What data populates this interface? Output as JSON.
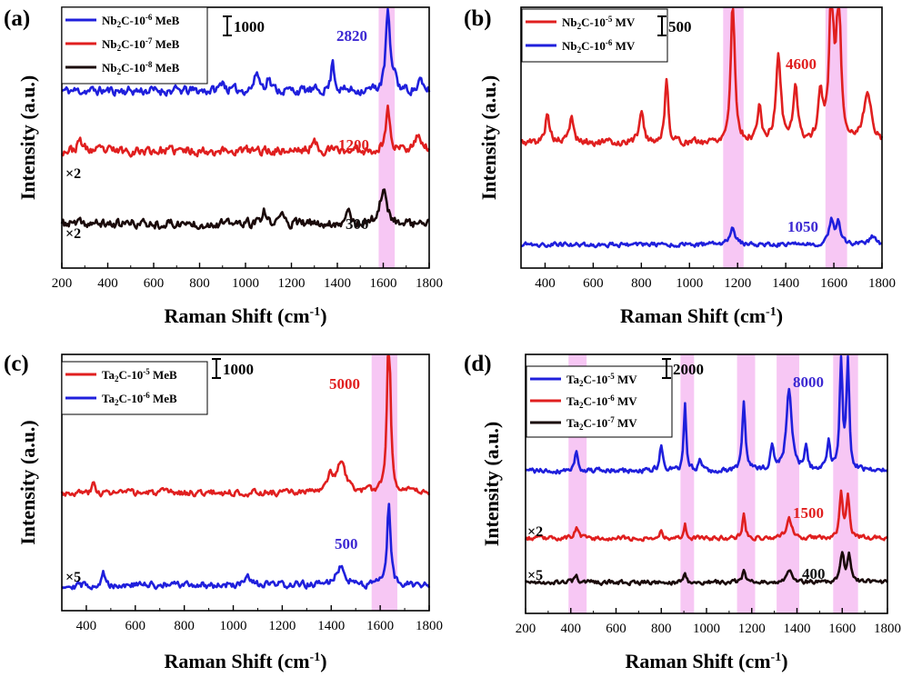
{
  "chart_data": [
    {
      "panel": "(a)",
      "type": "line",
      "xlabel": "Raman Shift (cm-1)",
      "ylabel": "Intensity (a.u.)",
      "xlim": [
        200,
        1800
      ],
      "xticks": [
        200,
        400,
        600,
        800,
        1000,
        1200,
        1400,
        1600,
        1800
      ],
      "scale_bar": "1000",
      "highlight_ranges": [
        [
          1580,
          1650
        ]
      ],
      "series": [
        {
          "name": "Nb2C-10-6 MeB",
          "color": "#1f1fdc",
          "baseline": 0.68,
          "peaks": [
            [
              1620,
              0.32,
              10
            ],
            [
              1380,
              0.12,
              8
            ],
            [
              1050,
              0.07,
              12
            ],
            [
              1100,
              0.05,
              10
            ],
            [
              900,
              0.04,
              10
            ],
            [
              1650,
              0.06,
              8
            ],
            [
              1760,
              0.04,
              8
            ]
          ],
          "noise": 0.025,
          "seed": 11
        },
        {
          "name": "Nb2C-10-7 MeB",
          "color": "#e01f1f",
          "baseline": 0.45,
          "peaks": [
            [
              1620,
              0.17,
              10
            ],
            [
              1750,
              0.06,
              20
            ],
            [
              280,
              0.04,
              12
            ],
            [
              1300,
              0.03,
              15
            ]
          ],
          "noise": 0.025,
          "seed": 23
        },
        {
          "name": "Nb2C-10-8 MeB",
          "color": "#1a0a0a",
          "baseline": 0.17,
          "peaks": [
            [
              1600,
              0.13,
              18
            ],
            [
              1450,
              0.07,
              8
            ],
            [
              1080,
              0.05,
              8
            ],
            [
              1160,
              0.04,
              10
            ]
          ],
          "noise": 0.025,
          "seed": 37
        }
      ],
      "peak_labels": [
        {
          "text": "2820",
          "color": "#3c28d2"
        },
        {
          "text": "1200",
          "color": "#e01f1f"
        },
        {
          "text": "300",
          "color": "#111111"
        }
      ],
      "multipliers": [
        "×2",
        "×2"
      ]
    },
    {
      "panel": "(b)",
      "type": "line",
      "xlabel": "Raman Shift (cm-1)",
      "ylabel": "Intensity (a.u.)",
      "xlim": [
        300,
        1800
      ],
      "xticks": [
        400,
        600,
        800,
        1000,
        1200,
        1400,
        1600,
        1800
      ],
      "scale_bar": "500",
      "highlight_ranges": [
        [
          1140,
          1225
        ],
        [
          1565,
          1655
        ]
      ],
      "series": [
        {
          "name": "Nb2C-10-5 MV",
          "color": "#e01f1f",
          "baseline": 0.48,
          "peaks": [
            [
              1180,
              0.55,
              10
            ],
            [
              1370,
              0.33,
              12
            ],
            [
              1440,
              0.22,
              10
            ],
            [
              1590,
              0.6,
              10
            ],
            [
              1620,
              0.57,
              10
            ],
            [
              905,
              0.25,
              8
            ],
            [
              410,
              0.12,
              10
            ],
            [
              510,
              0.1,
              10
            ],
            [
              800,
              0.13,
              10
            ],
            [
              1290,
              0.13,
              10
            ],
            [
              1740,
              0.18,
              20
            ],
            [
              1545,
              0.17,
              12
            ]
          ],
          "noise": 0.02,
          "seed": 5
        },
        {
          "name": "Nb2C-10-6 MV",
          "color": "#1f1fdc",
          "baseline": 0.09,
          "peaks": [
            [
              1180,
              0.07,
              12
            ],
            [
              1590,
              0.09,
              12
            ],
            [
              1620,
              0.08,
              10
            ],
            [
              1760,
              0.03,
              15
            ]
          ],
          "noise": 0.012,
          "seed": 19
        }
      ],
      "peak_labels": [
        {
          "text": "4600",
          "color": "#e01f1f"
        },
        {
          "text": "1050",
          "color": "#3c28d2"
        }
      ],
      "multipliers": []
    },
    {
      "panel": "(c)",
      "type": "line",
      "xlabel": "Raman Shift (cm-1)",
      "ylabel": "Intensity (a.u.)",
      "xlim": [
        300,
        1800
      ],
      "xticks": [
        400,
        600,
        800,
        1000,
        1200,
        1400,
        1600,
        1800
      ],
      "scale_bar": "1000",
      "highlight_ranges": [
        [
          1565,
          1670
        ]
      ],
      "series": [
        {
          "name": "Ta2C-10-5 MeB",
          "color": "#e01f1f",
          "baseline": 0.46,
          "peaks": [
            [
              1635,
              0.7,
              8
            ],
            [
              1440,
              0.12,
              22
            ],
            [
              1395,
              0.08,
              8
            ],
            [
              430,
              0.04,
              6
            ]
          ],
          "noise": 0.018,
          "seed": 3
        },
        {
          "name": "Ta2C-10-6 MeB",
          "color": "#1f1fdc",
          "baseline": 0.1,
          "peaks": [
            [
              1635,
              0.33,
              8
            ],
            [
              1440,
              0.08,
              20
            ],
            [
              470,
              0.05,
              6
            ],
            [
              1060,
              0.03,
              10
            ]
          ],
          "noise": 0.02,
          "seed": 29
        }
      ],
      "peak_labels": [
        {
          "text": "5000",
          "color": "#e01f1f"
        },
        {
          "text": "500",
          "color": "#3c28d2"
        }
      ],
      "multipliers": [
        "×5"
      ]
    },
    {
      "panel": "(d)",
      "type": "line",
      "xlabel": "Raman Shift (cm-1)",
      "ylabel": "Intensity (a.u.)",
      "xlim": [
        200,
        1800
      ],
      "xticks": [
        200,
        400,
        600,
        800,
        1000,
        1200,
        1400,
        1600,
        1800
      ],
      "scale_bar": "2000",
      "highlight_ranges": [
        [
          390,
          470
        ],
        [
          885,
          945
        ],
        [
          1135,
          1215
        ],
        [
          1310,
          1410
        ],
        [
          1560,
          1670
        ]
      ],
      "series": [
        {
          "name": "Ta2C-10-5 MV",
          "color": "#1f1fdc",
          "baseline": 0.55,
          "peaks": [
            [
              905,
              0.26,
              6
            ],
            [
              1165,
              0.27,
              8
            ],
            [
              1365,
              0.32,
              14
            ],
            [
              1595,
              0.47,
              7
            ],
            [
              1625,
              0.44,
              7
            ],
            [
              800,
              0.1,
              8
            ],
            [
              425,
              0.07,
              10
            ],
            [
              1290,
              0.1,
              8
            ],
            [
              1440,
              0.08,
              8
            ],
            [
              1540,
              0.12,
              8
            ],
            [
              970,
              0.05,
              8
            ]
          ],
          "noise": 0.015,
          "seed": 41
        },
        {
          "name": "Ta2C-10-6 MV",
          "color": "#e01f1f",
          "baseline": 0.29,
          "peaks": [
            [
              905,
              0.06,
              6
            ],
            [
              1165,
              0.09,
              8
            ],
            [
              1365,
              0.08,
              14
            ],
            [
              1595,
              0.18,
              8
            ],
            [
              1625,
              0.16,
              8
            ],
            [
              425,
              0.04,
              10
            ],
            [
              800,
              0.03,
              8
            ]
          ],
          "noise": 0.012,
          "seed": 53
        },
        {
          "name": "Ta2C-10-7 MV",
          "color": "#1a0a0a",
          "baseline": 0.12,
          "peaks": [
            [
              905,
              0.04,
              6
            ],
            [
              1165,
              0.04,
              8
            ],
            [
              1365,
              0.05,
              14
            ],
            [
              1600,
              0.11,
              10
            ],
            [
              1630,
              0.1,
              8
            ],
            [
              425,
              0.02,
              10
            ]
          ],
          "noise": 0.012,
          "seed": 67
        }
      ],
      "peak_labels": [
        {
          "text": "8000",
          "color": "#3c28d2"
        },
        {
          "text": "1500",
          "color": "#e01f1f"
        },
        {
          "text": "400",
          "color": "#111111"
        }
      ],
      "multipliers": [
        "×2",
        "×5"
      ]
    }
  ]
}
